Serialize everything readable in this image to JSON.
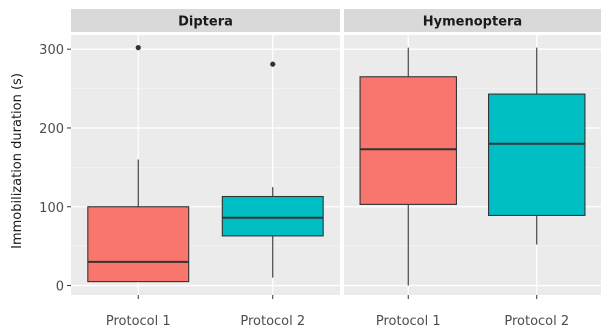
{
  "chart_data": {
    "type": "boxplot",
    "ylabel": "Immobilization duration (s)",
    "xlabel": "",
    "ylim": [
      -12,
      318
    ],
    "yticks": [
      0,
      100,
      200,
      300
    ],
    "categories": [
      "Protocol 1",
      "Protocol 2"
    ],
    "grid": true,
    "legend": "none",
    "colors": {
      "Protocol 1": "#F8766D",
      "Protocol 2": "#00BFC4"
    },
    "panels": [
      {
        "name": "Diptera",
        "boxes": [
          {
            "category": "Protocol 1",
            "whisker_low": 5,
            "q1": 5,
            "median": 30,
            "q3": 100,
            "whisker_high": 160,
            "outliers": [
              302
            ]
          },
          {
            "category": "Protocol 2",
            "whisker_low": 10,
            "q1": 63,
            "median": 86,
            "q3": 113,
            "whisker_high": 125,
            "outliers": [
              281
            ]
          }
        ]
      },
      {
        "name": "Hymenoptera",
        "boxes": [
          {
            "category": "Protocol 1",
            "whisker_low": 0,
            "q1": 103,
            "median": 173,
            "q3": 265,
            "whisker_high": 302,
            "outliers": []
          },
          {
            "category": "Protocol 2",
            "whisker_low": 52,
            "q1": 89,
            "median": 180,
            "q3": 243,
            "whisker_high": 302,
            "outliers": []
          }
        ]
      }
    ]
  }
}
